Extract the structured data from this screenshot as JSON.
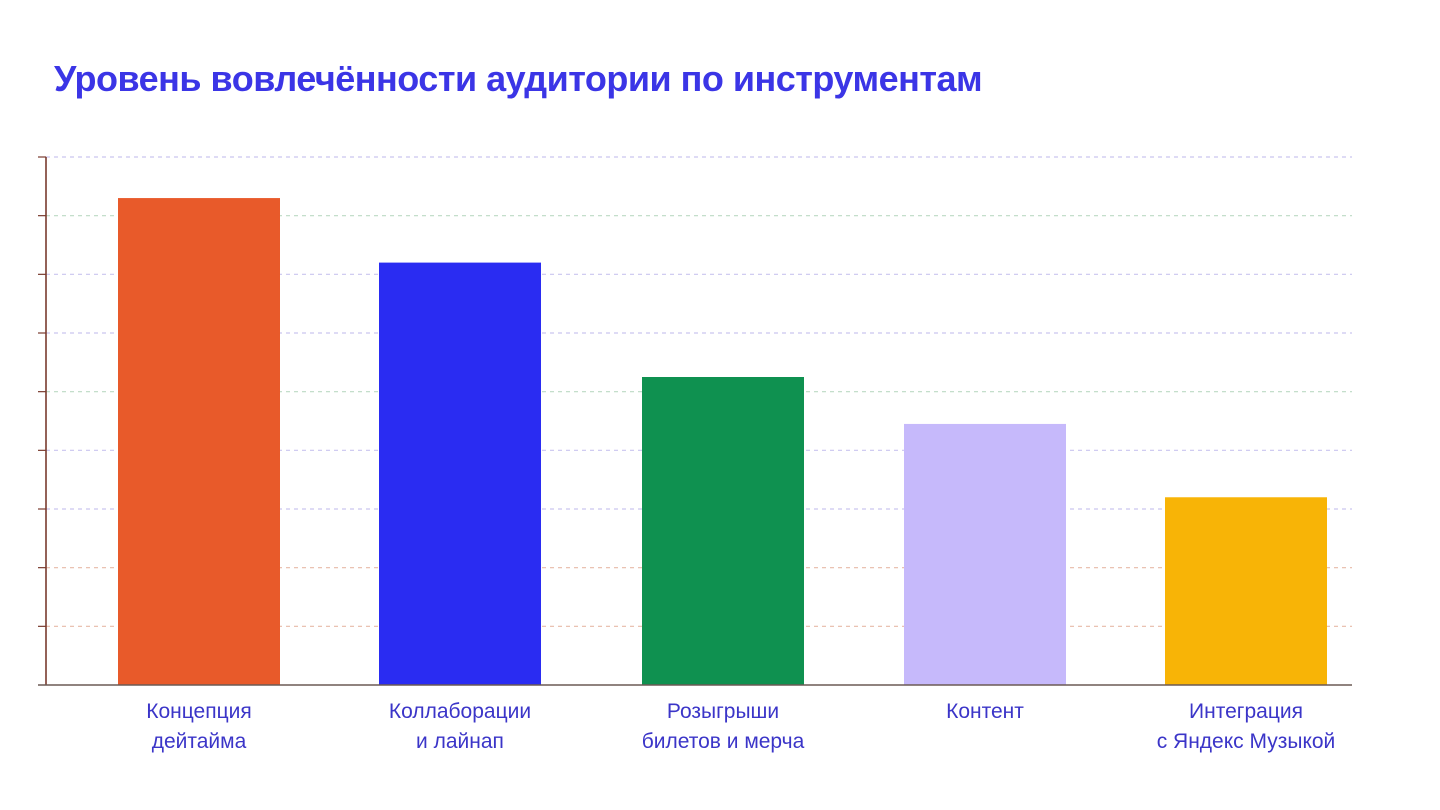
{
  "colors": {
    "title": "#3b35e6",
    "label": "#3b35c8",
    "axis": "#7a3b2e",
    "grid": [
      "#e8b9a8",
      "#e8b9a8",
      "#c9c5ef",
      "#c9c5ef",
      "#bcd9c4",
      "#c9c5ef",
      "#c9c5ef",
      "#bcd9c4",
      "#c9c5ef"
    ]
  },
  "chart_data": {
    "type": "bar",
    "title": "Уровень вовлечённости аудитории по инструментам",
    "xlabel": "",
    "ylabel": "",
    "ylim": [
      0,
      9
    ],
    "grid": true,
    "y_ticks_labeled": false,
    "categories": [
      [
        "Концепция",
        "дейтайма"
      ],
      [
        "Коллаборации",
        "и лайнап"
      ],
      [
        "Розыгрыши",
        "билетов и мерча"
      ],
      [
        "Контент"
      ],
      [
        "Интеграция",
        "с Яндекс Музыкой"
      ]
    ],
    "values": [
      8.3,
      7.2,
      5.25,
      4.45,
      3.2
    ],
    "bar_colors": [
      "#e85a2a",
      "#2a2cf2",
      "#0f9150",
      "#c6b9fb",
      "#f8b406"
    ]
  }
}
